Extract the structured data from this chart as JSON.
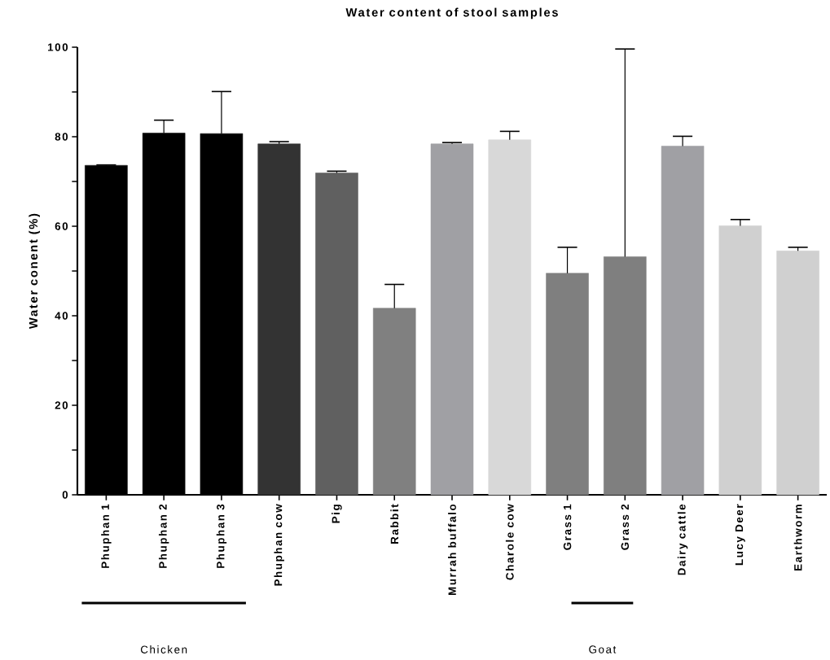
{
  "chart_data": {
    "type": "bar",
    "title": "Water content of stool samples",
    "ylabel": "Water conent (%)",
    "categories": [
      "Phuphan 1",
      "Phuphan 2",
      "Phuphan 3",
      "Phuphan cow",
      "Pig",
      "Rabbit",
      "Murrah buffalo",
      "Charole cow",
      "Grass 1",
      "Grass 2",
      "Dairy cattle",
      "Lucy Deer",
      "Earthworm"
    ],
    "values": [
      73.6,
      80.8,
      80.7,
      78.4,
      71.9,
      41.7,
      78.4,
      79.3,
      49.5,
      53.2,
      77.9,
      60.1,
      54.5
    ],
    "errors": [
      [
        73.6,
        73.7
      ],
      [
        80.8,
        83.7
      ],
      [
        80.7,
        90.1
      ],
      [
        78.4,
        78.9
      ],
      [
        71.9,
        72.3
      ],
      [
        41.7,
        47.0
      ],
      [
        78.4,
        78.7
      ],
      [
        79.3,
        81.2
      ],
      [
        49.5,
        55.3
      ],
      [
        53.2,
        99.6
      ],
      [
        77.9,
        80.1
      ],
      [
        60.1,
        61.5
      ],
      [
        54.5,
        55.3
      ]
    ],
    "colors": [
      "#000000",
      "#000000",
      "#000000",
      "#333333",
      "#606060",
      "#808080",
      "#a0a0a4",
      "#d8d8d8",
      "#7f7f7f",
      "#7f7f7f",
      "#a0a0a4",
      "#d0d0d0",
      "#d0d0d0"
    ],
    "ylim": [
      0,
      100
    ],
    "yticks": [
      0,
      {
        "value": 10,
        "label": null
      },
      20,
      {
        "value": 30,
        "label": null
      },
      40,
      {
        "value": 50,
        "label": null
      },
      60,
      {
        "value": 70,
        "label": null
      },
      80,
      {
        "value": 90,
        "label": null
      },
      100
    ],
    "annotations": [
      "Chicken",
      "Goat"
    ]
  }
}
